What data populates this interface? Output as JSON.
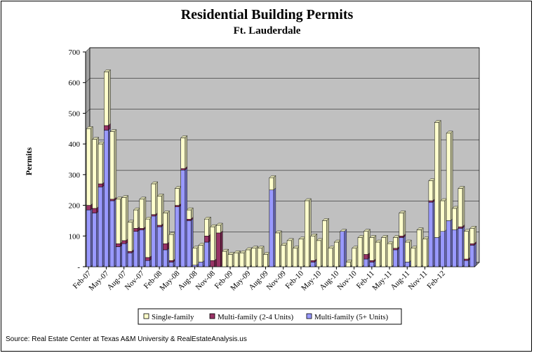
{
  "source": "Source: Real Estate Center at Texas A&M University & RealEstateAnalysis.us",
  "chart_data": {
    "type": "bar",
    "stacked": true,
    "title": "Residential Building Permits",
    "subtitle": "Ft. Lauderdale",
    "ylabel": "Permits",
    "ylim": [
      0,
      700
    ],
    "yticks": [
      "-",
      "100",
      "200",
      "300",
      "400",
      "500",
      "600",
      "700"
    ],
    "grid": true,
    "legend_position": "bottom",
    "x_tick_labels": [
      "Feb-07",
      "May-07",
      "Aug-07",
      "Nov-07",
      "Feb-08",
      "May-08",
      "Aug-08",
      "Nov-08",
      "Feb-09",
      "May-09",
      "Aug-09",
      "Nov-09",
      "Feb-10",
      "May-10",
      "Aug-10",
      "Nov-10",
      "Feb-11",
      "May-11",
      "Aug-11",
      "Nov-11",
      "Feb-12"
    ],
    "colors": {
      "single": "#ffffcc",
      "multi24": "#993366",
      "multi5": "#9999ff",
      "plot_bg": "#c0c0c0"
    },
    "series": [
      {
        "name": "Multi-family (5+ Units)",
        "key": "multi5",
        "values": [
          185,
          175,
          260,
          445,
          215,
          65,
          75,
          45,
          115,
          120,
          20,
          165,
          130,
          55,
          15,
          195,
          315,
          150,
          5,
          15,
          80,
          0,
          0,
          0,
          0,
          0,
          0,
          0,
          0,
          0,
          0,
          250,
          0,
          0,
          0,
          0,
          0,
          0,
          15,
          0,
          0,
          0,
          0,
          115,
          0,
          0,
          0,
          25,
          15,
          0,
          0,
          0,
          55,
          95,
          15,
          0,
          0,
          0,
          210,
          95,
          115,
          150,
          120,
          125,
          20,
          70
        ]
      },
      {
        "name": "Multi-family (2-4 Units)",
        "key": "multi24",
        "values": [
          15,
          15,
          10,
          15,
          5,
          10,
          10,
          5,
          10,
          5,
          10,
          5,
          5,
          20,
          5,
          5,
          5,
          5,
          0,
          0,
          20,
          20,
          110,
          0,
          0,
          0,
          0,
          0,
          0,
          0,
          0,
          0,
          0,
          0,
          0,
          0,
          0,
          0,
          5,
          0,
          0,
          0,
          0,
          0,
          0,
          0,
          0,
          15,
          5,
          0,
          0,
          0,
          5,
          5,
          0,
          0,
          0,
          0,
          5,
          0,
          0,
          0,
          0,
          5,
          5,
          5
        ]
      },
      {
        "name": "Single-family",
        "key": "single",
        "values": [
          250,
          225,
          130,
          175,
          220,
          145,
          140,
          95,
          60,
          95,
          125,
          100,
          95,
          100,
          85,
          55,
          100,
          30,
          55,
          55,
          55,
          110,
          25,
          50,
          40,
          45,
          45,
          55,
          60,
          60,
          40,
          40,
          110,
          70,
          85,
          60,
          90,
          215,
          80,
          85,
          150,
          60,
          80,
          0,
          15,
          60,
          95,
          75,
          75,
          80,
          95,
          75,
          35,
          75,
          65,
          60,
          120,
          90,
          65,
          375,
          100,
          285,
          70,
          125,
          90,
          50
        ]
      }
    ]
  },
  "legend": {
    "single": "Single-family",
    "multi24": "Multi-family (2-4 Units)",
    "multi5": "Multi-family (5+ Units)"
  }
}
